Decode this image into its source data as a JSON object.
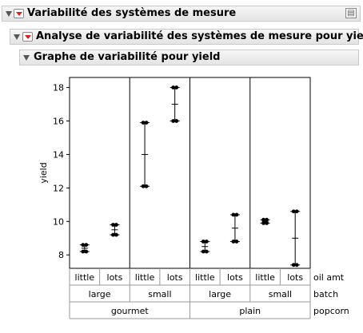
{
  "headers": {
    "h1": "Variabilité des systèmes de mesure",
    "h2": "Analyse de variabilité des systèmes de mesure pour yield",
    "h3": "Graphe de variabilité pour yield"
  },
  "colors": {
    "menu_button": "#d22222",
    "frame": "#000000"
  },
  "icons": {
    "collapse": "triangle-down",
    "menu": "red-triangle",
    "pin": "pin"
  },
  "chart_data": {
    "type": "variability",
    "ylabel": "yield",
    "ylim": [
      7.2,
      18.6
    ],
    "yticks": [
      8,
      10,
      12,
      14,
      16,
      18
    ],
    "row_labels": [
      "oil amt",
      "batch",
      "popcorn"
    ],
    "levels": {
      "popcorn": [
        "gourmet",
        "plain"
      ],
      "batch": [
        "large",
        "small",
        "large",
        "small"
      ],
      "oil_amt": [
        "little",
        "lots",
        "little",
        "lots",
        "little",
        "lots",
        "little",
        "lots"
      ]
    },
    "cells": [
      {
        "popcorn": "gourmet",
        "batch": "large",
        "oil_amt": "little",
        "points": [
          8.6,
          8.2
        ],
        "mean": 8.4
      },
      {
        "popcorn": "gourmet",
        "batch": "large",
        "oil_amt": "lots",
        "points": [
          9.8,
          9.2
        ],
        "mean": 9.5
      },
      {
        "popcorn": "gourmet",
        "batch": "small",
        "oil_amt": "little",
        "points": [
          15.9,
          12.1
        ],
        "mean": 14.0
      },
      {
        "popcorn": "gourmet",
        "batch": "small",
        "oil_amt": "lots",
        "points": [
          18.0,
          16.0
        ],
        "mean": 17.0
      },
      {
        "popcorn": "plain",
        "batch": "large",
        "oil_amt": "little",
        "points": [
          8.8,
          8.2
        ],
        "mean": 8.5
      },
      {
        "popcorn": "plain",
        "batch": "large",
        "oil_amt": "lots",
        "points": [
          10.4,
          8.8
        ],
        "mean": 9.6
      },
      {
        "popcorn": "plain",
        "batch": "small",
        "oil_amt": "little",
        "points": [
          10.1,
          9.9
        ],
        "mean": 10.0
      },
      {
        "popcorn": "plain",
        "batch": "small",
        "oil_amt": "lots",
        "points": [
          10.6,
          7.4
        ],
        "mean": 9.0
      }
    ]
  }
}
